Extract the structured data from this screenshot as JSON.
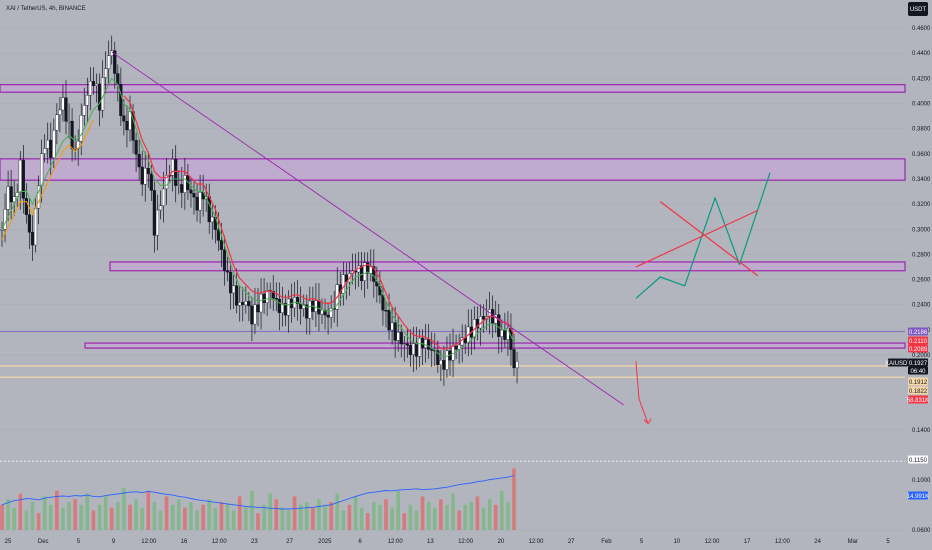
{
  "header": {
    "symbol_title": "XAI / TetherUS, 4h, BINANCE",
    "currency_badge": "USDT"
  },
  "colors": {
    "background": "#b2b5be",
    "zone_fill": "#c8a2d8",
    "zone_stroke": "#9c27b0",
    "candle_up": "#ffffff",
    "candle_down": "#131722",
    "ema_fast": "#4caf50",
    "ema_slow": "#f23645",
    "ema_alt": "#ff9800",
    "trendline": "#9c27b0",
    "projection_green": "#089981",
    "projection_red": "#f23645",
    "volume_up": "#66bb6a",
    "volume_down": "#ef5350",
    "volume_ma": "#2962ff"
  },
  "chart_data": {
    "type": "candlestick",
    "y_axis": {
      "ticks": [
        "0.4600",
        "0.4400",
        "0.4200",
        "0.4000",
        "0.3800",
        "0.3600",
        "0.3400",
        "0.3200",
        "0.3000",
        "0.2800",
        "0.2600",
        "0.2400",
        "0.2200",
        "0.2000",
        "0.1400",
        "0.1000",
        "0.0600"
      ],
      "range": [
        0.06,
        0.47
      ]
    },
    "x_axis": {
      "ticks": [
        "25",
        "Dec",
        "5",
        "9",
        "12:00",
        "16",
        "12:00",
        "23",
        "27",
        "2025",
        "6",
        "12:00",
        "13",
        "12:00",
        "20",
        "12:00",
        "27",
        "Feb",
        "5",
        "10",
        "12:00",
        "17",
        "12:00",
        "24",
        "Mar",
        "5"
      ]
    },
    "price_labels": [
      {
        "text": "0.2186",
        "kind": "purple"
      },
      {
        "text": "0.2110",
        "kind": "red"
      },
      {
        "text": "0.2089",
        "kind": "red"
      },
      {
        "text": "XAIUSDT",
        "kind": "symbol"
      },
      {
        "text": "0.1927",
        "kind": "current"
      },
      {
        "text": "06:40",
        "kind": "countdown"
      },
      {
        "text": "0.1912",
        "kind": "peach"
      },
      {
        "text": "0.1822",
        "kind": "peach"
      },
      {
        "text": "58.831K",
        "kind": "volred"
      },
      {
        "text": "0.1150",
        "kind": "dotted"
      },
      {
        "text": "14.991K",
        "kind": "volblue"
      }
    ],
    "zones": [
      {
        "low": 0.409,
        "high": 0.415
      },
      {
        "low": 0.339,
        "high": 0.356
      },
      {
        "low": 0.267,
        "high": 0.274
      },
      {
        "low": 0.2055,
        "high": 0.2095
      }
    ],
    "horizontal_lines": [
      {
        "price": 0.2186,
        "style": "solid-purple"
      },
      {
        "price": 0.1912,
        "style": "solid-peach"
      },
      {
        "price": 0.1822,
        "style": "solid-peach"
      },
      {
        "price": 0.115,
        "style": "dotted-white"
      }
    ],
    "trendline": {
      "from": {
        "x_index": 18,
        "price": 0.441
      },
      "to": {
        "x_index": 102,
        "price": 0.16
      }
    },
    "price_path": [
      0.3,
      0.33,
      0.32,
      0.35,
      0.31,
      0.29,
      0.34,
      0.37,
      0.36,
      0.39,
      0.4,
      0.38,
      0.36,
      0.39,
      0.41,
      0.42,
      0.4,
      0.43,
      0.44,
      0.41,
      0.38,
      0.39,
      0.36,
      0.34,
      0.35,
      0.3,
      0.32,
      0.34,
      0.35,
      0.33,
      0.34,
      0.33,
      0.32,
      0.33,
      0.31,
      0.3,
      0.28,
      0.26,
      0.25,
      0.24,
      0.245,
      0.23,
      0.24,
      0.245,
      0.25,
      0.24,
      0.235,
      0.24,
      0.245,
      0.24,
      0.235,
      0.24,
      0.235,
      0.23,
      0.232,
      0.25,
      0.26,
      0.265,
      0.27,
      0.265,
      0.27,
      0.26,
      0.245,
      0.23,
      0.22,
      0.215,
      0.21,
      0.205,
      0.205,
      0.21,
      0.205,
      0.2,
      0.19,
      0.198,
      0.205,
      0.21,
      0.215,
      0.22,
      0.225,
      0.228,
      0.232,
      0.226,
      0.215,
      0.22,
      0.1927
    ],
    "ema_fast": [
      0.3,
      0.31,
      0.32,
      0.33,
      0.33,
      0.32,
      0.33,
      0.34,
      0.35,
      0.36,
      0.37,
      0.375,
      0.37,
      0.375,
      0.385,
      0.395,
      0.4,
      0.41,
      0.42,
      0.415,
      0.4,
      0.395,
      0.38,
      0.365,
      0.355,
      0.34,
      0.335,
      0.335,
      0.34,
      0.34,
      0.34,
      0.335,
      0.33,
      0.33,
      0.32,
      0.31,
      0.295,
      0.28,
      0.265,
      0.255,
      0.25,
      0.245,
      0.243,
      0.244,
      0.245,
      0.243,
      0.24,
      0.24,
      0.242,
      0.241,
      0.238,
      0.239,
      0.237,
      0.235,
      0.235,
      0.24,
      0.248,
      0.255,
      0.262,
      0.264,
      0.266,
      0.263,
      0.255,
      0.243,
      0.232,
      0.225,
      0.218,
      0.212,
      0.209,
      0.209,
      0.207,
      0.204,
      0.199,
      0.199,
      0.201,
      0.204,
      0.208,
      0.212,
      0.217,
      0.221,
      0.225,
      0.224,
      0.22,
      0.22,
      0.21
    ],
    "ema_slow_from": 20,
    "projection_green": [
      [
        104,
        0.245
      ],
      [
        108,
        0.262
      ],
      [
        112,
        0.255
      ],
      [
        117,
        0.325
      ],
      [
        121,
        0.272
      ],
      [
        126,
        0.345
      ]
    ],
    "projection_red_line": [
      [
        104,
        0.27
      ],
      [
        124,
        0.315
      ]
    ],
    "projection_red_x": [
      [
        108,
        0.322
      ],
      [
        124,
        0.263
      ]
    ],
    "projection_red_drop": [
      [
        104,
        0.195
      ],
      [
        104.5,
        0.165
      ],
      [
        106,
        0.145
      ]
    ],
    "volume": [
      9,
      11,
      8,
      13,
      7,
      10,
      6,
      12,
      9,
      14,
      8,
      10,
      11,
      9,
      13,
      7,
      9,
      12,
      8,
      10,
      15,
      9,
      11,
      8,
      14,
      10,
      7,
      12,
      9,
      11,
      8,
      10,
      7,
      9,
      11,
      8,
      10,
      9,
      7,
      12,
      8,
      14,
      6,
      9,
      13,
      11,
      8,
      7,
      12,
      9,
      10,
      8,
      11,
      9,
      10,
      13,
      7,
      9,
      12,
      8,
      6,
      10,
      9,
      11,
      8,
      14,
      6,
      9,
      7,
      12,
      10,
      8,
      11,
      9,
      13,
      7,
      9,
      10,
      12,
      8,
      11,
      9,
      14,
      10,
      22
    ],
    "volume_ma": [
      6,
      6.5,
      7,
      7.2,
      7.5,
      7.4,
      7.2,
      7.6,
      7.8,
      8,
      8.1,
      8,
      8.2,
      8.1,
      8.3,
      8,
      7.9,
      8.2,
      8.4,
      8.6,
      8.8,
      9,
      9.1,
      8.9,
      9.2,
      9,
      8.7,
      8.5,
      8.3,
      8,
      7.8,
      7.5,
      7.2,
      7,
      6.8,
      6.6,
      6.4,
      6.2,
      6,
      5.8,
      5.6,
      5.5,
      5.4,
      5.3,
      5.2,
      5.1,
      5,
      5,
      5.1,
      5.2,
      5.3,
      5.4,
      5.6,
      5.8,
      6,
      6.5,
      7,
      7.5,
      8,
      8.4,
      8.8,
      9,
      9.2,
      9.4,
      9.3,
      9.5,
      9.6,
      9.7,
      9.8,
      9.6,
      9.7,
      9.8,
      10,
      10.2,
      10.5,
      10.8,
      11,
      11.2,
      11.5,
      11.7,
      12,
      12.2,
      12.4,
      12.6,
      13
    ]
  }
}
